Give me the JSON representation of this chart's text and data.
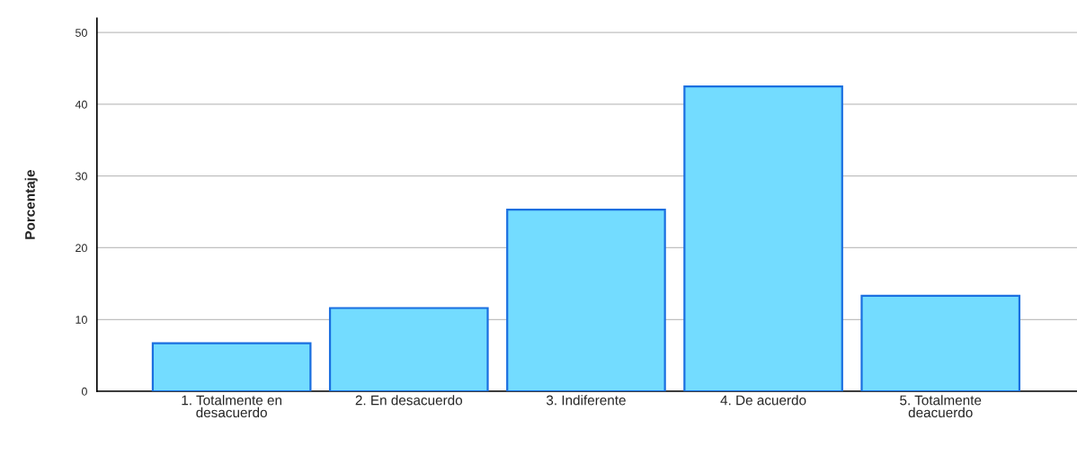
{
  "chart_data": {
    "type": "bar",
    "ylabel": "Porcentaje",
    "categories": [
      "1. Totalmente en\ndesacuerdo",
      "2. En desacuerdo",
      "3. Indiferente",
      "4. De acuerdo",
      "5. Totalmente\ndeacuerdo"
    ],
    "values": [
      6.7,
      11.6,
      25.3,
      42.5,
      13.3
    ],
    "color": "#73dcff",
    "ylim": [
      0,
      52
    ],
    "yticks": [
      0,
      10,
      20,
      30,
      40,
      50
    ],
    "grid": "y"
  }
}
